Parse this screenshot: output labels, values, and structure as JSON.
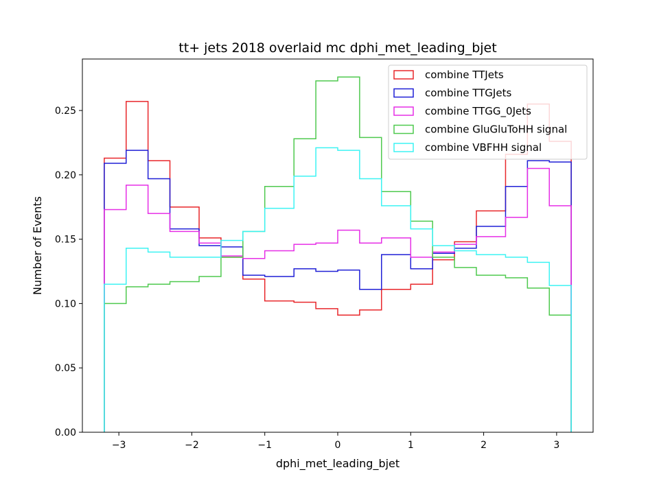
{
  "chart_data": {
    "type": "histogram",
    "title": "tt+ jets 2018 overlaid mc dphi_met_leading_bjet",
    "xlabel": "dphi_met_leading_bjet",
    "ylabel": "Number of Events",
    "xlim": [
      -3.5,
      3.5
    ],
    "ylim": [
      0.0,
      0.29
    ],
    "xticks": [
      -3,
      -2,
      -1,
      0,
      1,
      2,
      3
    ],
    "xtick_labels": [
      "−3",
      "−2",
      "−1",
      "0",
      "1",
      "2",
      "3"
    ],
    "yticks": [
      0.0,
      0.05,
      0.1,
      0.15,
      0.2,
      0.25
    ],
    "ytick_labels": [
      "0.00",
      "0.05",
      "0.10",
      "0.15",
      "0.20",
      "0.25"
    ],
    "grid": false,
    "legend_position": "top-right",
    "bin_edges": [
      -3.2,
      -2.9,
      -2.6,
      -2.3,
      -1.9,
      -1.6,
      -1.3,
      -1.0,
      -0.6,
      -0.3,
      0.0,
      0.3,
      0.6,
      1.0,
      1.3,
      1.6,
      1.9,
      2.3,
      2.6,
      2.9,
      3.2
    ],
    "series": [
      {
        "name": "combine TTJets",
        "color": "#e8262a",
        "values": [
          0.213,
          0.257,
          0.211,
          0.175,
          0.151,
          0.136,
          0.119,
          0.102,
          0.101,
          0.096,
          0.091,
          0.095,
          0.111,
          0.115,
          0.134,
          0.148,
          0.172,
          0.216,
          0.255,
          0.226
        ]
      },
      {
        "name": "combine TTGJets",
        "color": "#1f1fd6",
        "values": [
          0.209,
          0.219,
          0.197,
          0.158,
          0.145,
          0.144,
          0.122,
          0.121,
          0.127,
          0.125,
          0.126,
          0.111,
          0.138,
          0.127,
          0.139,
          0.143,
          0.16,
          0.191,
          0.211,
          0.21
        ]
      },
      {
        "name": "combine TTGG_0Jets",
        "color": "#e62ee6",
        "values": [
          0.173,
          0.192,
          0.17,
          0.156,
          0.147,
          0.137,
          0.135,
          0.141,
          0.146,
          0.147,
          0.157,
          0.147,
          0.151,
          0.136,
          0.14,
          0.146,
          0.152,
          0.167,
          0.205,
          0.176
        ]
      },
      {
        "name": "combine GluGluToHH signal",
        "color": "#4ec94e",
        "values": [
          0.1,
          0.113,
          0.115,
          0.117,
          0.121,
          0.136,
          0.156,
          0.191,
          0.228,
          0.273,
          0.276,
          0.229,
          0.187,
          0.164,
          0.136,
          0.128,
          0.122,
          0.12,
          0.112,
          0.091
        ]
      },
      {
        "name": "combine VBFHH signal",
        "color": "#3cf3f3",
        "values": [
          0.115,
          0.143,
          0.14,
          0.136,
          0.136,
          0.149,
          0.156,
          0.174,
          0.199,
          0.221,
          0.219,
          0.197,
          0.176,
          0.158,
          0.145,
          0.141,
          0.138,
          0.136,
          0.132,
          0.114
        ]
      }
    ]
  }
}
